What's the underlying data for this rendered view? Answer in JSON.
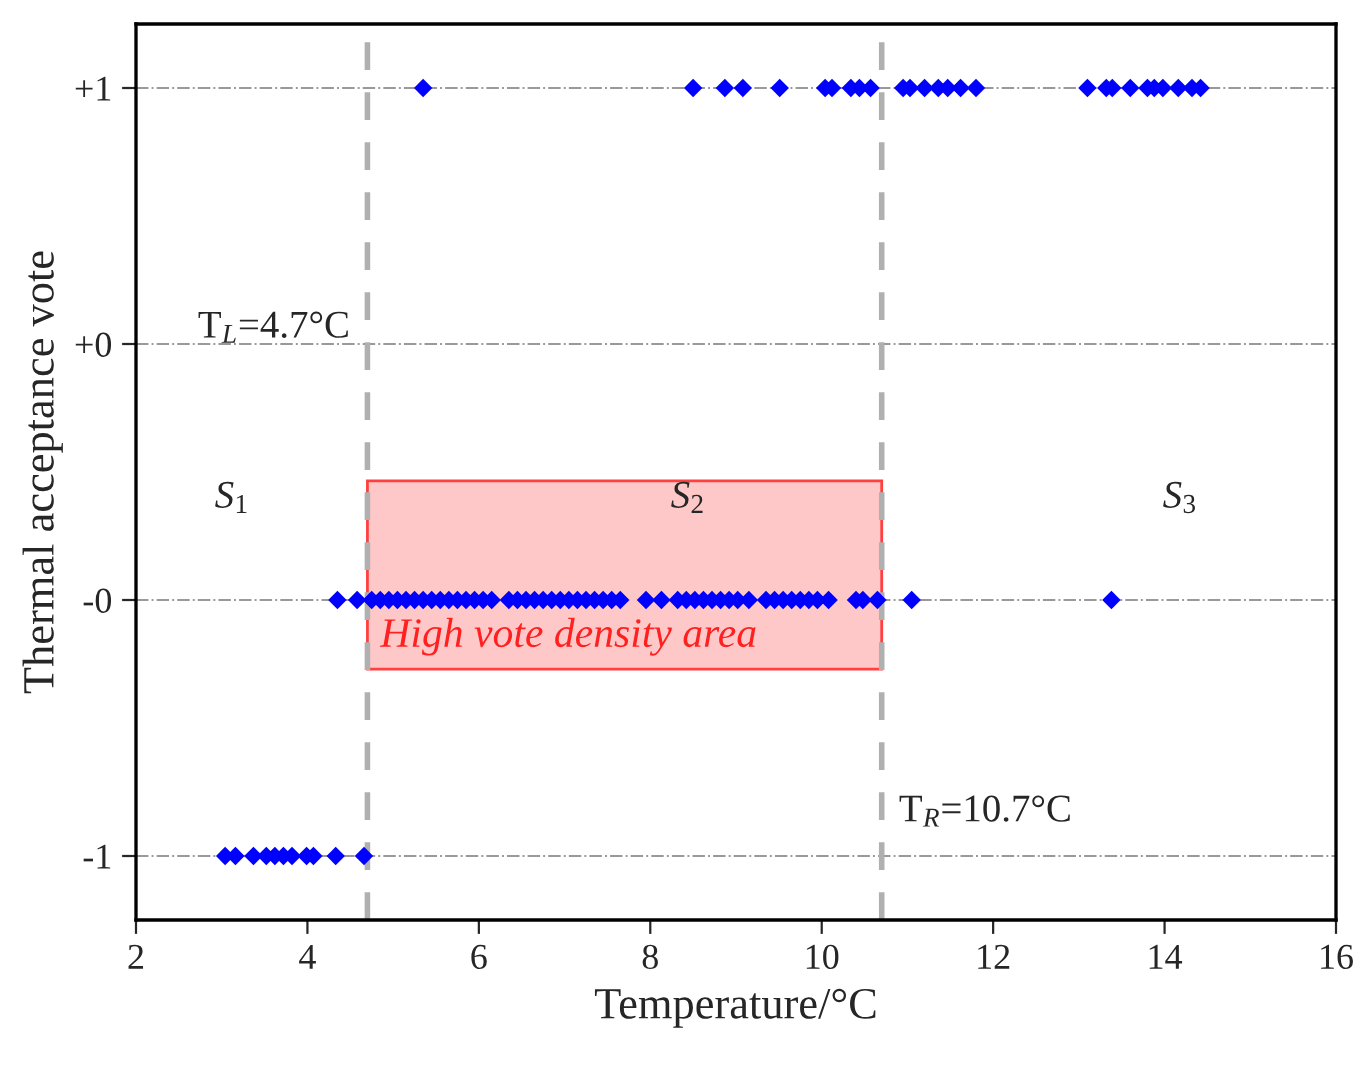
{
  "chart_data": {
    "type": "scatter",
    "xlabel": "Temperature/°C",
    "ylabel": "Thermal acceptance vote",
    "xlim": [
      2,
      16
    ],
    "xticks": [
      2,
      4,
      6,
      8,
      10,
      12,
      14,
      16
    ],
    "ylim": [
      -1.75,
      1.75
    ],
    "yticks": [
      {
        "value": -1.5,
        "label": "-1"
      },
      {
        "value": -0.5,
        "label": "-0"
      },
      {
        "value": 0.5,
        "label": "+0"
      },
      {
        "value": 1.5,
        "label": "+1"
      }
    ],
    "grid": "y",
    "marker": "diamond",
    "legend": false,
    "series": [
      {
        "color": "#0000ff",
        "x": [
          5.35,
          8.5,
          8.87,
          9.08,
          9.51,
          10.04,
          10.12,
          10.34,
          10.44,
          10.57,
          10.95,
          11.03,
          11.2,
          11.36,
          11.47,
          11.62,
          11.8,
          13.1,
          13.32,
          13.39,
          13.6,
          13.8,
          13.88,
          13.98,
          14.16,
          14.32,
          14.42
        ],
        "values": [
          1.5,
          1.5,
          1.5,
          1.5,
          1.5,
          1.5,
          1.5,
          1.5,
          1.5,
          1.5,
          1.5,
          1.5,
          1.5,
          1.5,
          1.5,
          1.5,
          1.5,
          1.5,
          1.5,
          1.5,
          1.5,
          1.5,
          1.5,
          1.5,
          1.5,
          1.5,
          1.5
        ]
      },
      {
        "color": "#0000ff",
        "x": [
          3.04,
          3.16,
          3.37,
          3.52,
          3.62,
          3.72,
          3.82,
          3.99,
          4.07,
          4.33,
          4.66
        ],
        "values": [
          -1.5,
          -1.5,
          -1.5,
          -1.5,
          -1.5,
          -1.5,
          -1.5,
          -1.5,
          -1.5,
          -1.5,
          -1.5
        ]
      },
      {
        "color": "#0000ff",
        "x": [
          4.35,
          4.58,
          4.75,
          4.85,
          4.95,
          5.05,
          5.15,
          5.25,
          5.35,
          5.45,
          5.55,
          5.65,
          5.75,
          5.85,
          5.95,
          6.05,
          6.15,
          6.35,
          6.45,
          6.55,
          6.65,
          6.75,
          6.85,
          6.95,
          7.05,
          7.15,
          7.25,
          7.35,
          7.45,
          7.55,
          7.65,
          7.95,
          8.13,
          8.32,
          8.42,
          8.52,
          8.62,
          8.72,
          8.82,
          8.92,
          9.02,
          9.15,
          9.35,
          9.45,
          9.55,
          9.65,
          9.75,
          9.85,
          9.95,
          10.08,
          10.4,
          10.48,
          10.65,
          11.05,
          13.38
        ],
        "values": [
          -0.5,
          -0.5,
          -0.5,
          -0.5,
          -0.5,
          -0.5,
          -0.5,
          -0.5,
          -0.5,
          -0.5,
          -0.5,
          -0.5,
          -0.5,
          -0.5,
          -0.5,
          -0.5,
          -0.5,
          -0.5,
          -0.5,
          -0.5,
          -0.5,
          -0.5,
          -0.5,
          -0.5,
          -0.5,
          -0.5,
          -0.5,
          -0.5,
          -0.5,
          -0.5,
          -0.5,
          -0.5,
          -0.5,
          -0.5,
          -0.5,
          -0.5,
          -0.5,
          -0.5,
          -0.5,
          -0.5,
          -0.5,
          -0.5,
          -0.5,
          -0.5,
          -0.5,
          -0.5,
          -0.5,
          -0.5,
          -0.5,
          -0.5,
          -0.5,
          -0.5,
          -0.5,
          -0.5,
          -0.5
        ]
      }
    ],
    "ref_lines": [
      {
        "axis": "x",
        "value": 4.7,
        "label": "T$_{L}$=4.7°C",
        "color": "#b0b0b0",
        "line_style": "dashed"
      },
      {
        "axis": "x",
        "value": 10.7,
        "label": "T$_{R}$=10.7°C",
        "color": "#b0b0b0",
        "line_style": "dashed"
      }
    ],
    "bands": [
      {
        "axis": "x",
        "from": 4.7,
        "to": 10.7,
        "label": "High vote density area",
        "color": "#ffc8c8"
      }
    ],
    "annotations": [
      "S$_{1}$",
      "S$_{2}$",
      "S$_{3}$"
    ]
  }
}
